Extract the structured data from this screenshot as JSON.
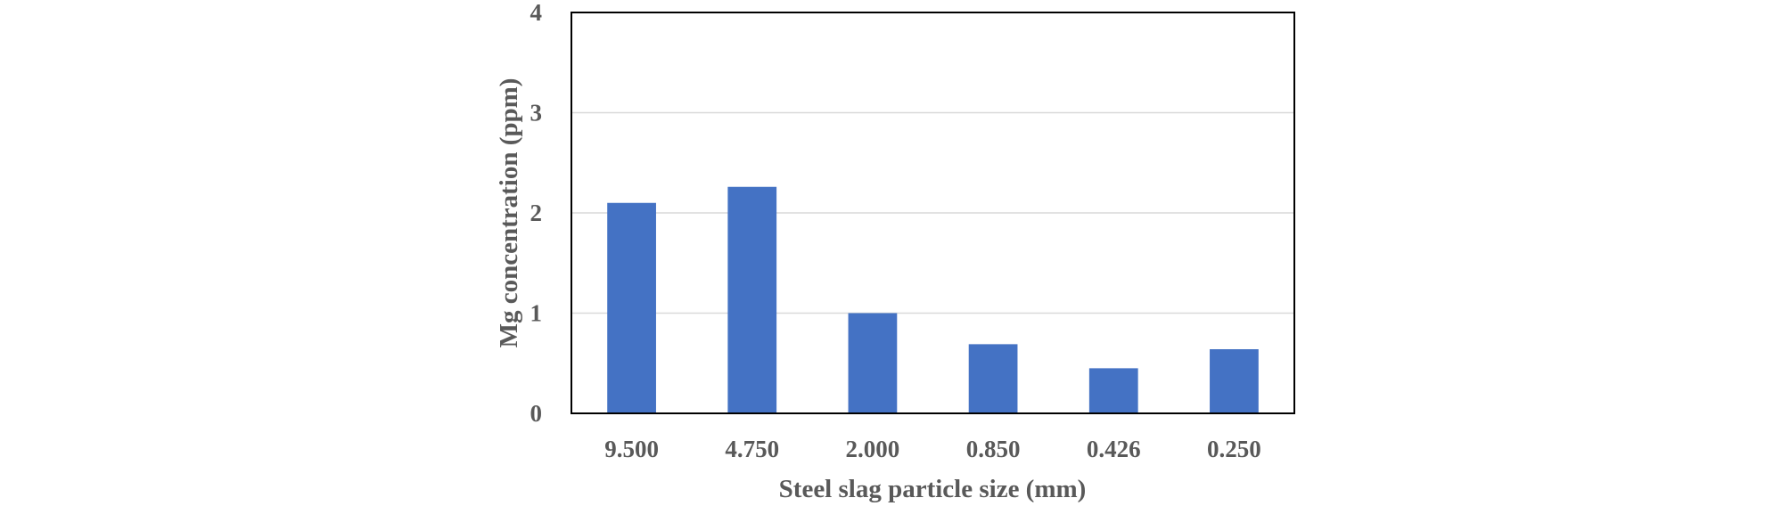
{
  "chart_data": {
    "type": "bar",
    "categories": [
      "9.500",
      "4.750",
      "2.000",
      "0.850",
      "0.426",
      "0.250"
    ],
    "values": [
      2.1,
      2.26,
      1.0,
      0.69,
      0.45,
      0.64
    ],
    "xlabel": "Steel slag particle size (mm)",
    "ylabel": "Mg concentration (ppm)",
    "ylim": [
      0,
      4
    ],
    "yticks": [
      "0",
      "1",
      "2",
      "3",
      "4"
    ],
    "grid": true,
    "legend": "none",
    "colors": {
      "bar": "#4472C4",
      "grid": "#D9D9D9",
      "frame": "#000000",
      "text": "#595959"
    }
  }
}
